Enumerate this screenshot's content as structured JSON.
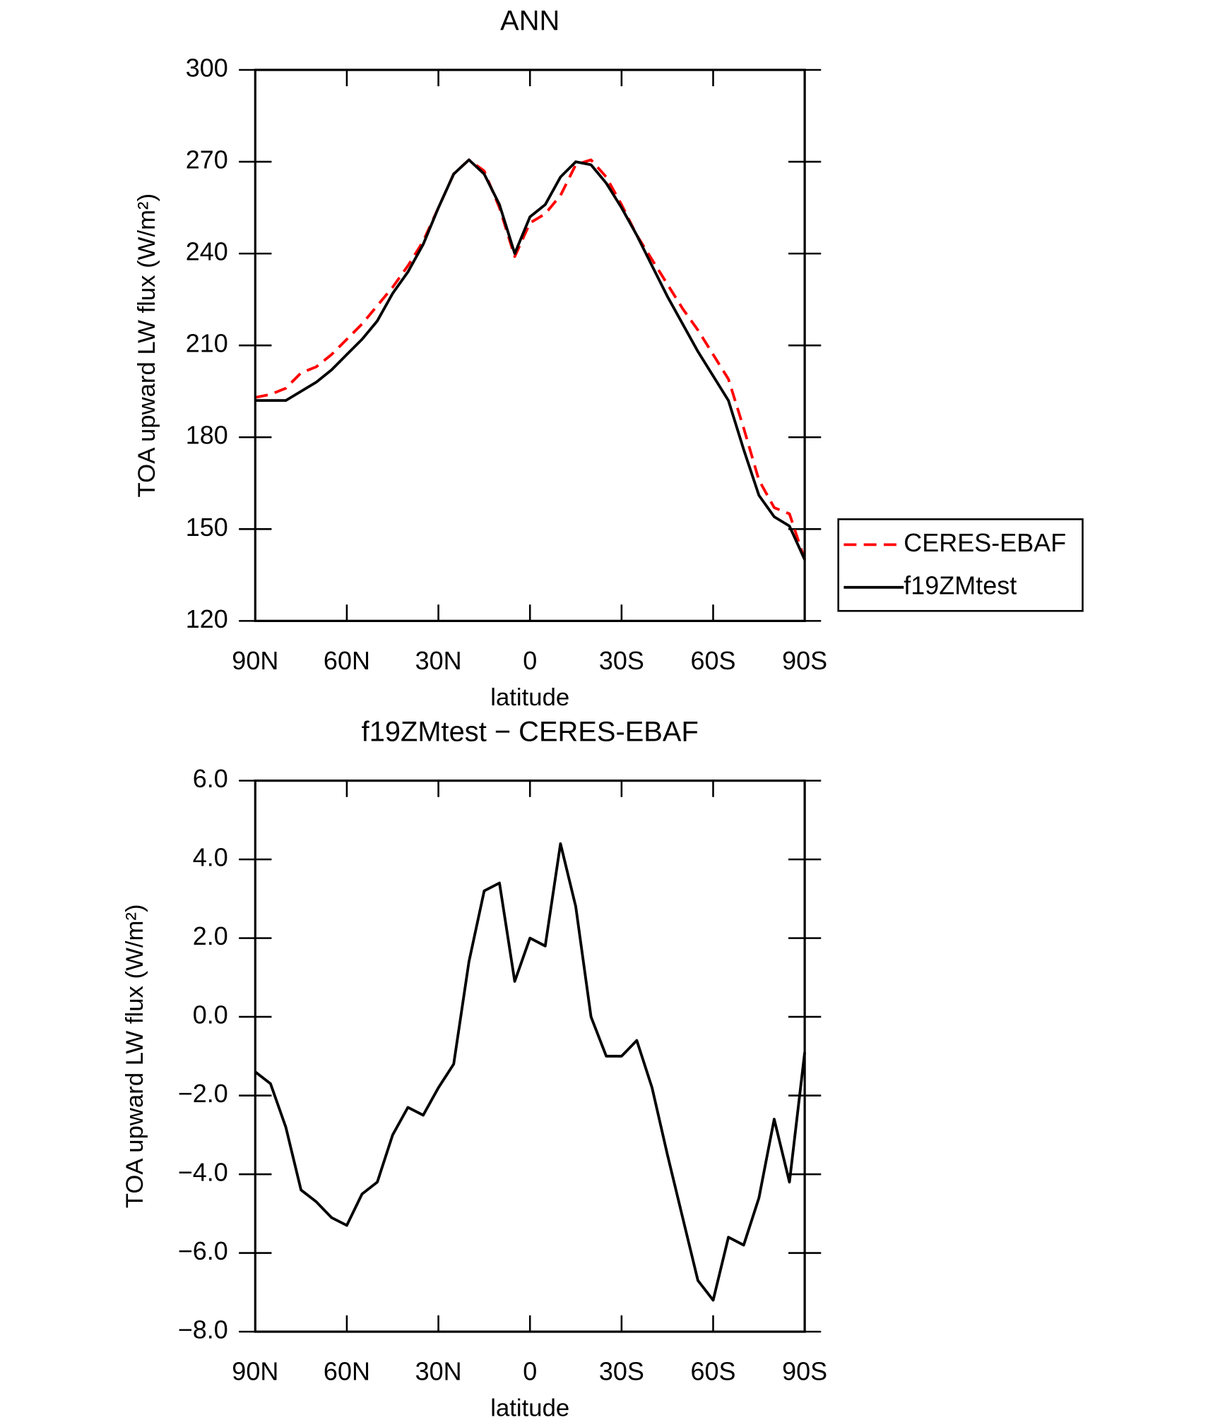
{
  "chart_data": [
    {
      "type": "line",
      "title": "ANN",
      "xlabel": "latitude",
      "ylabel": "TOA upward LW flux (W/m²)",
      "x": [
        90,
        85,
        80,
        75,
        70,
        65,
        60,
        55,
        50,
        45,
        40,
        35,
        30,
        25,
        20,
        15,
        10,
        5,
        0,
        -5,
        -10,
        -15,
        -20,
        -25,
        -30,
        -35,
        -40,
        -45,
        -50,
        -55,
        -60,
        -65,
        -70,
        -75,
        -80,
        -85,
        -90
      ],
      "series": [
        {
          "name": "CERES-EBAF",
          "color": "#ff0000",
          "dashed": true,
          "values": [
            193,
            194,
            196,
            201,
            203,
            207,
            212,
            217,
            223,
            229,
            236,
            244,
            255,
            266,
            270.6,
            267,
            255,
            239,
            250,
            253,
            259,
            269,
            270.6,
            265,
            256,
            246,
            238,
            230,
            222,
            215,
            207,
            199,
            183,
            166,
            157,
            155,
            140
          ]
        },
        {
          "name": "f19ZMtest",
          "color": "#000000",
          "dashed": false,
          "values": [
            192,
            192,
            192,
            195,
            198,
            202,
            207,
            212,
            218,
            227,
            234,
            243,
            255,
            266,
            270.6,
            266,
            256,
            240,
            252,
            256,
            265,
            270,
            269,
            263,
            255,
            246,
            236,
            226,
            217,
            208,
            200,
            192,
            176,
            161,
            154,
            151,
            140
          ]
        }
      ],
      "xlim": [
        90,
        -90
      ],
      "xticks": [
        {
          "value": 90,
          "label": "90N"
        },
        {
          "value": 60,
          "label": "60N"
        },
        {
          "value": 30,
          "label": "30N"
        },
        0,
        {
          "value": -30,
          "label": "30S"
        },
        {
          "value": -60,
          "label": "60S"
        },
        {
          "value": -90,
          "label": "90S"
        }
      ],
      "ylim": [
        120,
        300
      ],
      "yticks": [
        120,
        150,
        180,
        210,
        240,
        270,
        300
      ],
      "legend": "right"
    },
    {
      "type": "line",
      "title": "f19ZMtest − CERES-EBAF",
      "xlabel": "latitude",
      "ylabel": "TOA upward LW flux (W/m²)",
      "x": [
        90,
        85,
        80,
        75,
        70,
        65,
        60,
        55,
        50,
        45,
        40,
        35,
        30,
        25,
        20,
        15,
        10,
        5,
        0,
        -5,
        -10,
        -15,
        -20,
        -25,
        -30,
        -35,
        -40,
        -45,
        -50,
        -55,
        -60,
        -65,
        -70,
        -75,
        -80,
        -85,
        -90
      ],
      "color": "#000000",
      "values": [
        -1.4,
        -1.7,
        -2.8,
        -4.4,
        -4.7,
        -5.1,
        -5.3,
        -4.5,
        -4.2,
        -3.0,
        -2.3,
        -2.5,
        -1.8,
        -1.2,
        1.4,
        3.2,
        3.4,
        0.9,
        2.0,
        1.8,
        4.4,
        2.8,
        0.0,
        -1.0,
        -1.0,
        -0.6,
        -1.8,
        -3.5,
        -5.1,
        -6.7,
        -7.2,
        -5.6,
        -5.8,
        -4.6,
        -2.6,
        -4.2,
        -0.9
      ],
      "xlim": [
        90,
        -90
      ],
      "xticks": [
        {
          "value": 90,
          "label": "90N"
        },
        {
          "value": 60,
          "label": "60N"
        },
        {
          "value": 30,
          "label": "30N"
        },
        0,
        {
          "value": -30,
          "label": "30S"
        },
        {
          "value": -60,
          "label": "60S"
        },
        {
          "value": -90,
          "label": "90S"
        }
      ],
      "ylim": [
        -8,
        6
      ],
      "yticks": [
        {
          "value": -8,
          "label": "−8.0"
        },
        {
          "value": -6,
          "label": "−6.0"
        },
        {
          "value": -4,
          "label": "−4.0"
        },
        {
          "value": -2,
          "label": "−2.0"
        },
        {
          "value": 0,
          "label": "0.0"
        },
        {
          "value": 2,
          "label": "2.0"
        },
        {
          "value": 4,
          "label": "4.0"
        },
        {
          "value": 6,
          "label": "6.0"
        }
      ]
    }
  ]
}
